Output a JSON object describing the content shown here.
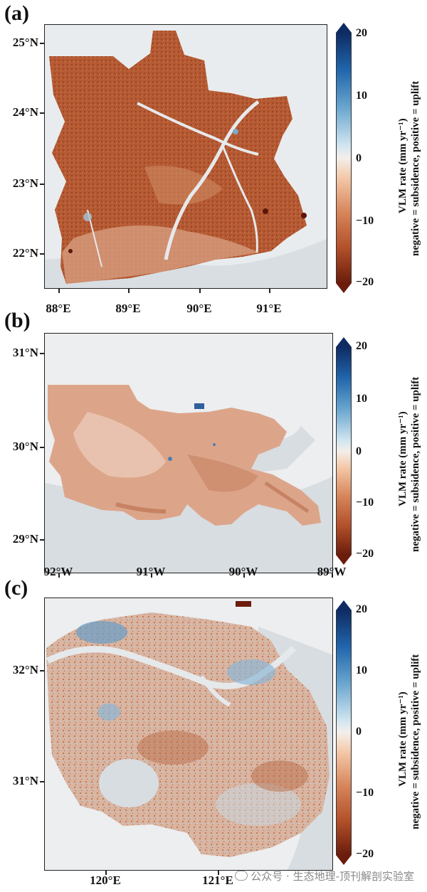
{
  "panels": [
    {
      "label": "(a)",
      "y_ticks": [
        "25°N",
        "24°N",
        "23°N",
        "22°N"
      ],
      "x_ticks": [
        "88°E",
        "89°E",
        "90°E",
        "91°E"
      ],
      "colorbar": {
        "ticks": [
          "20",
          "10",
          "0",
          "−10",
          "−20"
        ],
        "title_line1": "VLM rate (mm yr⁻¹)",
        "title_line2": "negative = subsidence, positive = uplift"
      },
      "dominant_color": "#b55a33"
    },
    {
      "label": "(b)",
      "y_ticks": [
        "31°N",
        "30°N",
        "29°N"
      ],
      "x_ticks": [
        "92°W",
        "91°W",
        "90°W",
        "89°W"
      ],
      "colorbar": {
        "ticks": [
          "20",
          "10",
          "0",
          "−10",
          "−20"
        ],
        "title_line1": "VLM rate (mm yr⁻¹)",
        "title_line2": "negative = subsidence, positive = uplift"
      },
      "dominant_color": "#dca58a"
    },
    {
      "label": "(c)",
      "y_ticks": [
        "32°N",
        "31°N"
      ],
      "x_ticks": [
        "120°E",
        "121°E"
      ],
      "colorbar": {
        "ticks": [
          "20",
          "10",
          "0",
          "−10",
          "−20"
        ],
        "title_line1": "VLM rate (mm yr⁻¹)",
        "title_line2": "negative = subsidence, positive = uplift"
      },
      "dominant_color": "#d9b4a0"
    }
  ],
  "colorscale": {
    "min": -20,
    "max": 20,
    "extend": "both",
    "colors": [
      "#6b1c0c",
      "#b2502a",
      "#d6845a",
      "#f4c8a8",
      "#f4efea",
      "#d1e5f0",
      "#6aa6cf",
      "#2166ac",
      "#0e2b63"
    ]
  },
  "watermark": "公众号 · 生态地理-顶刊解剖实验室"
}
